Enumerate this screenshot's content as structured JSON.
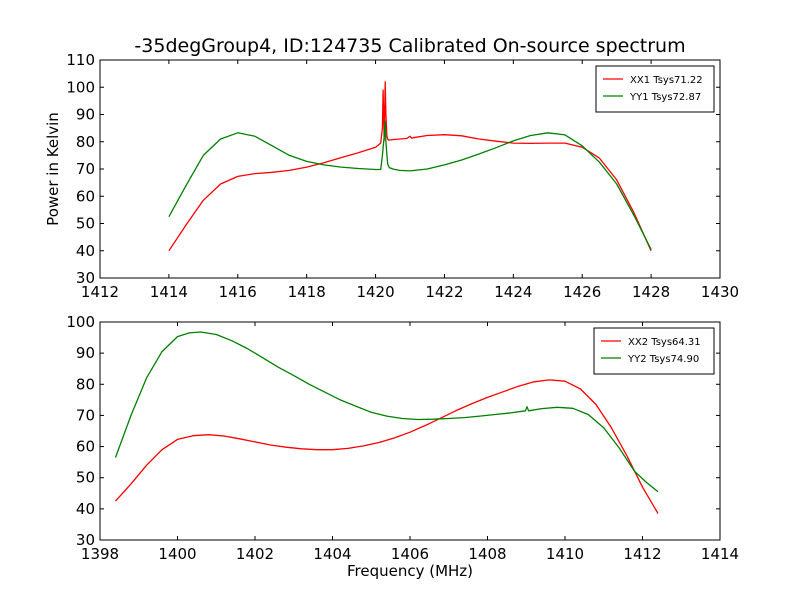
{
  "figure": {
    "title": "-35degGroup4, ID:124735 Calibrated On-source spectrum"
  },
  "chart_data": [
    {
      "type": "line",
      "title": "-35degGroup4, ID:124735 Calibrated On-source spectrum",
      "xlabel": "",
      "ylabel": "Power in Kelvin",
      "xlim": [
        1412,
        1430
      ],
      "ylim": [
        30,
        110
      ],
      "xticks": [
        1412,
        1414,
        1416,
        1418,
        1420,
        1422,
        1424,
        1426,
        1428,
        1430
      ],
      "yticks": [
        30,
        40,
        50,
        60,
        70,
        80,
        90,
        100,
        110
      ],
      "grid": false,
      "legend_position": "top-right",
      "series": [
        {
          "name": "XX1 Tsys71.22",
          "color": "#ff0000",
          "x": [
            1414.0,
            1414.5,
            1415.0,
            1415.5,
            1416.0,
            1416.5,
            1417.0,
            1417.5,
            1418.0,
            1418.5,
            1419.0,
            1419.5,
            1420.0,
            1420.15,
            1420.2,
            1420.22,
            1420.25,
            1420.28,
            1420.3,
            1420.33,
            1420.36,
            1420.4,
            1420.5,
            1420.7,
            1420.9,
            1421.0,
            1421.05,
            1421.1,
            1421.5,
            1422.0,
            1422.5,
            1423.0,
            1423.5,
            1424.0,
            1424.5,
            1425.0,
            1425.5,
            1426.0,
            1426.5,
            1427.0,
            1427.5,
            1428.0
          ],
          "y": [
            40.0,
            49.5,
            58.5,
            64.5,
            67.3,
            68.3,
            68.8,
            69.5,
            70.7,
            72.3,
            74.2,
            76.0,
            78.0,
            79.5,
            85.0,
            99.0,
            80.5,
            102.0,
            90.0,
            82.0,
            80.8,
            80.6,
            80.8,
            81.0,
            81.2,
            82.0,
            81.3,
            81.5,
            82.3,
            82.6,
            82.2,
            81.0,
            80.2,
            79.5,
            79.4,
            79.5,
            79.5,
            78.0,
            74.0,
            66.0,
            54.0,
            40.0
          ]
        },
        {
          "name": "YY1 Tsys72.87",
          "color": "#008000",
          "x": [
            1414.0,
            1414.5,
            1415.0,
            1415.5,
            1416.0,
            1416.5,
            1417.0,
            1417.5,
            1418.0,
            1418.5,
            1419.0,
            1419.5,
            1420.0,
            1420.15,
            1420.2,
            1420.25,
            1420.28,
            1420.3,
            1420.35,
            1420.4,
            1420.5,
            1420.7,
            1421.0,
            1421.5,
            1422.0,
            1422.5,
            1423.0,
            1423.5,
            1424.0,
            1424.5,
            1425.0,
            1425.5,
            1426.0,
            1426.5,
            1427.0,
            1427.5,
            1428.0
          ],
          "y": [
            52.5,
            64.0,
            75.0,
            81.0,
            83.3,
            82.0,
            78.5,
            75.0,
            72.8,
            71.5,
            70.7,
            70.2,
            69.8,
            69.8,
            75.0,
            82.0,
            87.5,
            80.0,
            72.0,
            70.5,
            70.0,
            69.5,
            69.3,
            70.0,
            71.5,
            73.3,
            75.5,
            77.8,
            80.3,
            82.3,
            83.3,
            82.5,
            78.5,
            72.5,
            64.5,
            53.0,
            40.5
          ]
        }
      ]
    },
    {
      "type": "line",
      "title": "",
      "xlabel": "Frequency (MHz)",
      "ylabel": "",
      "xlim": [
        1398,
        1414
      ],
      "ylim": [
        30,
        100
      ],
      "xticks": [
        1398,
        1400,
        1402,
        1404,
        1406,
        1408,
        1410,
        1412,
        1414
      ],
      "yticks": [
        30,
        40,
        50,
        60,
        70,
        80,
        90,
        100
      ],
      "grid": false,
      "legend_position": "top-right",
      "series": [
        {
          "name": "XX2 Tsys64.31",
          "color": "#ff0000",
          "x": [
            1398.4,
            1398.8,
            1399.2,
            1399.6,
            1400.0,
            1400.4,
            1400.8,
            1401.2,
            1401.6,
            1402.0,
            1402.4,
            1402.8,
            1403.2,
            1403.6,
            1404.0,
            1404.4,
            1404.8,
            1405.2,
            1405.6,
            1406.0,
            1406.4,
            1406.8,
            1407.2,
            1407.6,
            1408.0,
            1408.4,
            1408.8,
            1409.2,
            1409.6,
            1410.0,
            1410.4,
            1410.8,
            1411.2,
            1411.6,
            1412.0,
            1412.4
          ],
          "y": [
            42.5,
            48.0,
            54.0,
            59.0,
            62.3,
            63.5,
            63.8,
            63.4,
            62.5,
            61.5,
            60.5,
            59.8,
            59.3,
            59.0,
            59.0,
            59.4,
            60.2,
            61.3,
            62.8,
            64.6,
            66.8,
            69.2,
            71.6,
            73.8,
            75.8,
            77.6,
            79.4,
            80.8,
            81.4,
            81.0,
            78.5,
            73.5,
            66.0,
            57.0,
            47.0,
            38.5
          ]
        },
        {
          "name": "YY2 Tsys74.90",
          "color": "#008000",
          "x": [
            1398.4,
            1398.8,
            1399.2,
            1399.6,
            1400.0,
            1400.3,
            1400.6,
            1401.0,
            1401.4,
            1401.8,
            1402.2,
            1402.6,
            1403.0,
            1403.4,
            1403.8,
            1404.2,
            1404.6,
            1405.0,
            1405.4,
            1405.8,
            1406.2,
            1406.6,
            1407.0,
            1407.4,
            1407.8,
            1408.2,
            1408.6,
            1408.98,
            1409.02,
            1409.06,
            1409.4,
            1409.8,
            1410.2,
            1410.6,
            1411.0,
            1411.4,
            1411.8,
            1412.1,
            1412.4
          ],
          "y": [
            56.5,
            70.0,
            82.0,
            90.5,
            95.3,
            96.5,
            96.8,
            96.0,
            94.0,
            91.5,
            88.5,
            85.5,
            82.8,
            80.0,
            77.5,
            75.0,
            73.0,
            71.0,
            69.8,
            69.0,
            68.7,
            68.8,
            69.0,
            69.3,
            69.8,
            70.3,
            70.8,
            71.5,
            72.8,
            71.5,
            72.2,
            72.6,
            72.3,
            70.3,
            66.0,
            59.5,
            52.0,
            48.5,
            45.5
          ]
        }
      ]
    }
  ]
}
